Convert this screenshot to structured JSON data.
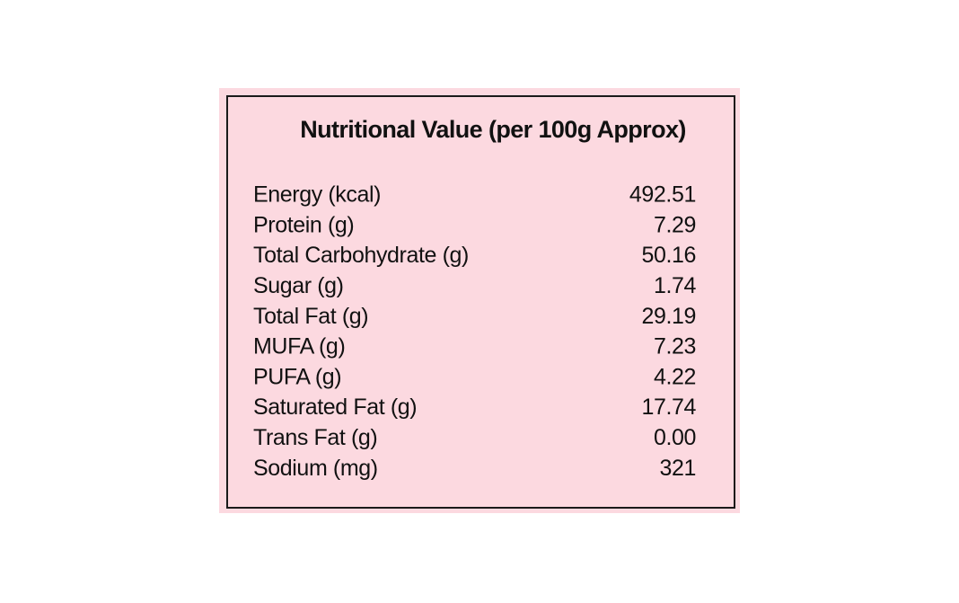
{
  "title": "Nutritional Value (per 100g Approx)",
  "table": {
    "rows": [
      [
        "Energy (kcal)",
        "492.51"
      ],
      [
        "Protein (g)",
        "7.29"
      ],
      [
        "Total Carbohydrate (g)",
        "50.16"
      ],
      [
        "Sugar (g)",
        "1.74"
      ],
      [
        "Total Fat (g)",
        "29.19"
      ],
      [
        "MUFA (g)",
        "7.23"
      ],
      [
        "PUFA (g)",
        "4.22"
      ],
      [
        "Saturated Fat (g)",
        "17.74"
      ],
      [
        "Trans Fat (g)",
        "0.00"
      ],
      [
        "Sodium  (mg)",
        "321"
      ]
    ]
  }
}
